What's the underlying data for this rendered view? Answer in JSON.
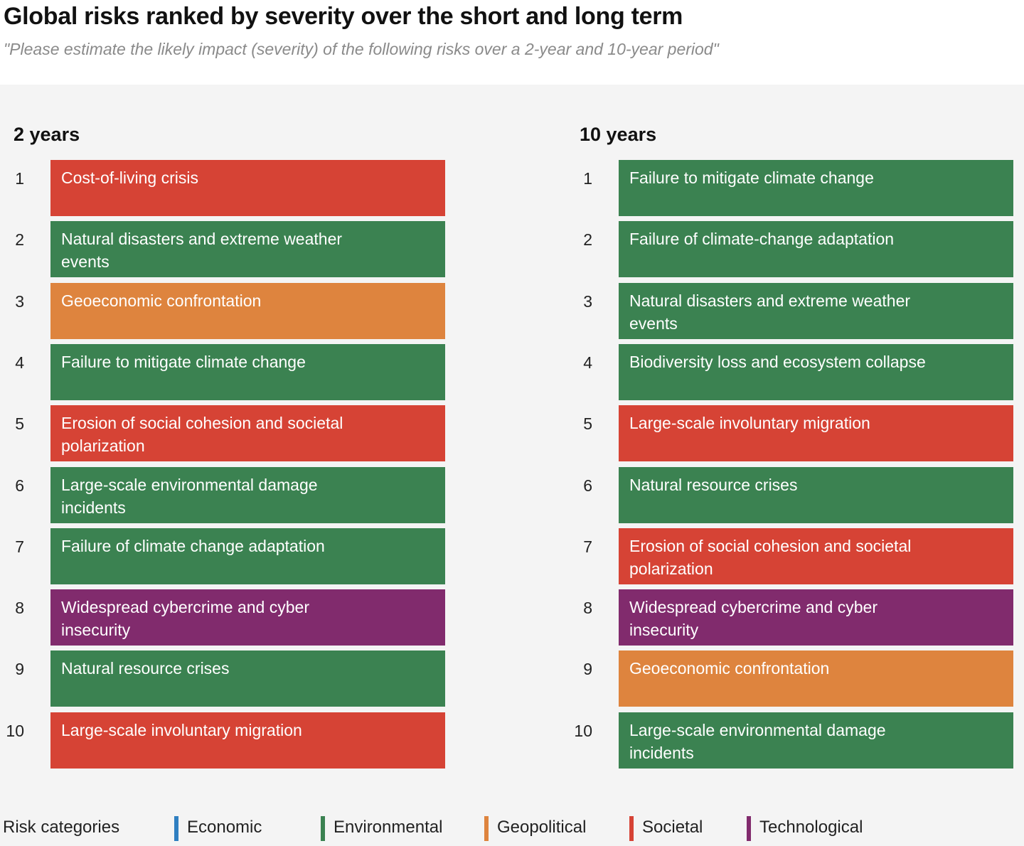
{
  "title": "Global risks ranked by severity over the short and long term",
  "subtitle": "\"Please estimate the likely impact (severity) of the following risks over a 2-year and 10-year period\"",
  "colors": {
    "Economic": "#2f7fc1",
    "Environmental": "#3b8251",
    "Geopolitical": "#de843e",
    "Societal": "#d64335",
    "Technological": "#812b6d",
    "panel_background": "#f4f4f4"
  },
  "chart_data": {
    "type": "table",
    "title": "Global risks ranked by severity over the short and long term",
    "subtitle": "\"Please estimate the likely impact (severity) of the following risks over a 2-year and 10-year period\"",
    "columns": [
      {
        "heading": "2 years",
        "rows": [
          {
            "rank": "1",
            "risk": "Cost-of-living crisis",
            "category": "Societal"
          },
          {
            "rank": "2",
            "risk": "Natural disasters and extreme weather events",
            "category": "Environmental"
          },
          {
            "rank": "3",
            "risk": "Geoeconomic confrontation",
            "category": "Geopolitical"
          },
          {
            "rank": "4",
            "risk": "Failure to mitigate climate change",
            "category": "Environmental"
          },
          {
            "rank": "5",
            "risk": "Erosion of social cohesion and societal polarization",
            "category": "Societal"
          },
          {
            "rank": "6",
            "risk": "Large-scale environmental damage incidents",
            "category": "Environmental"
          },
          {
            "rank": "7",
            "risk": "Failure of climate change adaptation",
            "category": "Environmental"
          },
          {
            "rank": "8",
            "risk": "Widespread cybercrime and cyber insecurity",
            "category": "Technological"
          },
          {
            "rank": "9",
            "risk": "Natural resource crises",
            "category": "Environmental"
          },
          {
            "rank": "10",
            "risk": "Large-scale involuntary migration",
            "category": "Societal"
          }
        ]
      },
      {
        "heading": "10 years",
        "rows": [
          {
            "rank": "1",
            "risk": "Failure to mitigate climate change",
            "category": "Environmental"
          },
          {
            "rank": "2",
            "risk": "Failure of climate-change adaptation",
            "category": "Environmental"
          },
          {
            "rank": "3",
            "risk": "Natural disasters and extreme weather events",
            "category": "Environmental"
          },
          {
            "rank": "4",
            "risk": "Biodiversity loss and ecosystem collapse",
            "category": "Environmental"
          },
          {
            "rank": "5",
            "risk": "Large-scale involuntary migration",
            "category": "Societal"
          },
          {
            "rank": "6",
            "risk": "Natural resource crises",
            "category": "Environmental"
          },
          {
            "rank": "7",
            "risk": "Erosion of social cohesion and societal polarization",
            "category": "Societal"
          },
          {
            "rank": "8",
            "risk": "Widespread cybercrime and cyber insecurity",
            "category": "Technological"
          },
          {
            "rank": "9",
            "risk": "Geoeconomic confrontation",
            "category": "Geopolitical"
          },
          {
            "rank": "10",
            "risk": "Large-scale environmental damage incidents",
            "category": "Environmental"
          }
        ]
      }
    ],
    "legend": {
      "title": "Risk categories",
      "placement": "bottom",
      "items": [
        "Economic",
        "Environmental",
        "Geopolitical",
        "Societal",
        "Technological"
      ]
    }
  }
}
